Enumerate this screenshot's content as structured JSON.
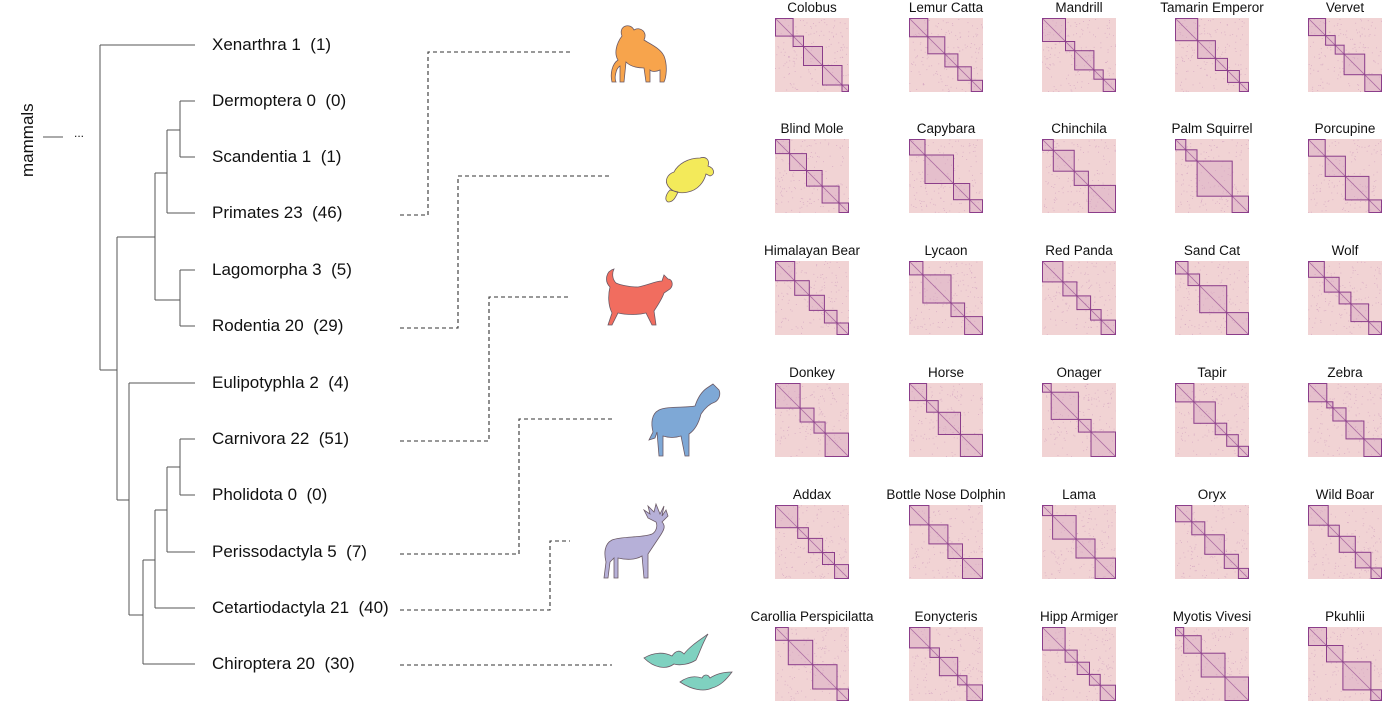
{
  "tree": {
    "root_label": "mammals",
    "ellipsis": "...",
    "orders": [
      {
        "name": "Xenarthra",
        "count": "1",
        "paren": "(1)"
      },
      {
        "name": "Dermoptera",
        "count": "0",
        "paren": "(0)"
      },
      {
        "name": "Scandentia",
        "count": "1",
        "paren": "(1)"
      },
      {
        "name": "Primates",
        "count": "23",
        "paren": "(46)"
      },
      {
        "name": "Lagomorpha",
        "count": "3",
        "paren": "(5)"
      },
      {
        "name": "Rodentia",
        "count": "20",
        "paren": "(29)"
      },
      {
        "name": "Eulipotyphla",
        "count": "2",
        "paren": "(4)"
      },
      {
        "name": "Carnivora",
        "count": "22",
        "paren": "(51)"
      },
      {
        "name": "Pholidota",
        "count": "0",
        "paren": "(0)"
      },
      {
        "name": "Perissodactyla",
        "count": "5",
        "paren": "(7)"
      },
      {
        "name": "Cetartiodactyla",
        "count": "21",
        "paren": "(40)"
      },
      {
        "name": "Chiroptera",
        "count": "20",
        "paren": "(30)"
      }
    ]
  },
  "groups": [
    {
      "animal": "monkey-icon",
      "color": "#f7a44c",
      "species": [
        "Colobus",
        "Lemur Catta",
        "Mandrill",
        "Tamarin Emperor",
        "Vervet"
      ]
    },
    {
      "animal": "beaver-icon",
      "color": "#f3ea5a",
      "species": [
        "Blind Mole",
        "Capybara",
        "Chinchila",
        "Palm Squirrel",
        "Porcupine"
      ]
    },
    {
      "animal": "cat-icon",
      "color": "#f16d5f",
      "species": [
        "Himalayan Bear",
        "Lycaon",
        "Red Panda",
        "Sand Cat",
        "Wolf"
      ]
    },
    {
      "animal": "horse-icon",
      "color": "#7ea8d6",
      "species": [
        "Donkey",
        "Horse",
        "Onager",
        "Tapir",
        "Zebra"
      ]
    },
    {
      "animal": "deer-icon",
      "color": "#b6b0d8",
      "species": [
        "Addax",
        "Bottle Nose Dolphin",
        "Lama",
        "Oryx",
        "Wild Boar"
      ]
    },
    {
      "animal": "bat-icon",
      "color": "#7fd1c0",
      "species": [
        "Carollia Perspicilatta",
        "Eonycteris",
        "Hipp Armiger",
        "Myotis Vivesi",
        "Pkuhlii"
      ]
    }
  ],
  "colors": {
    "tree_line": "#555555",
    "dash": "#333333",
    "matrix_bg": "#f1d3d4",
    "matrix_stroke": "#8b3d8a"
  }
}
